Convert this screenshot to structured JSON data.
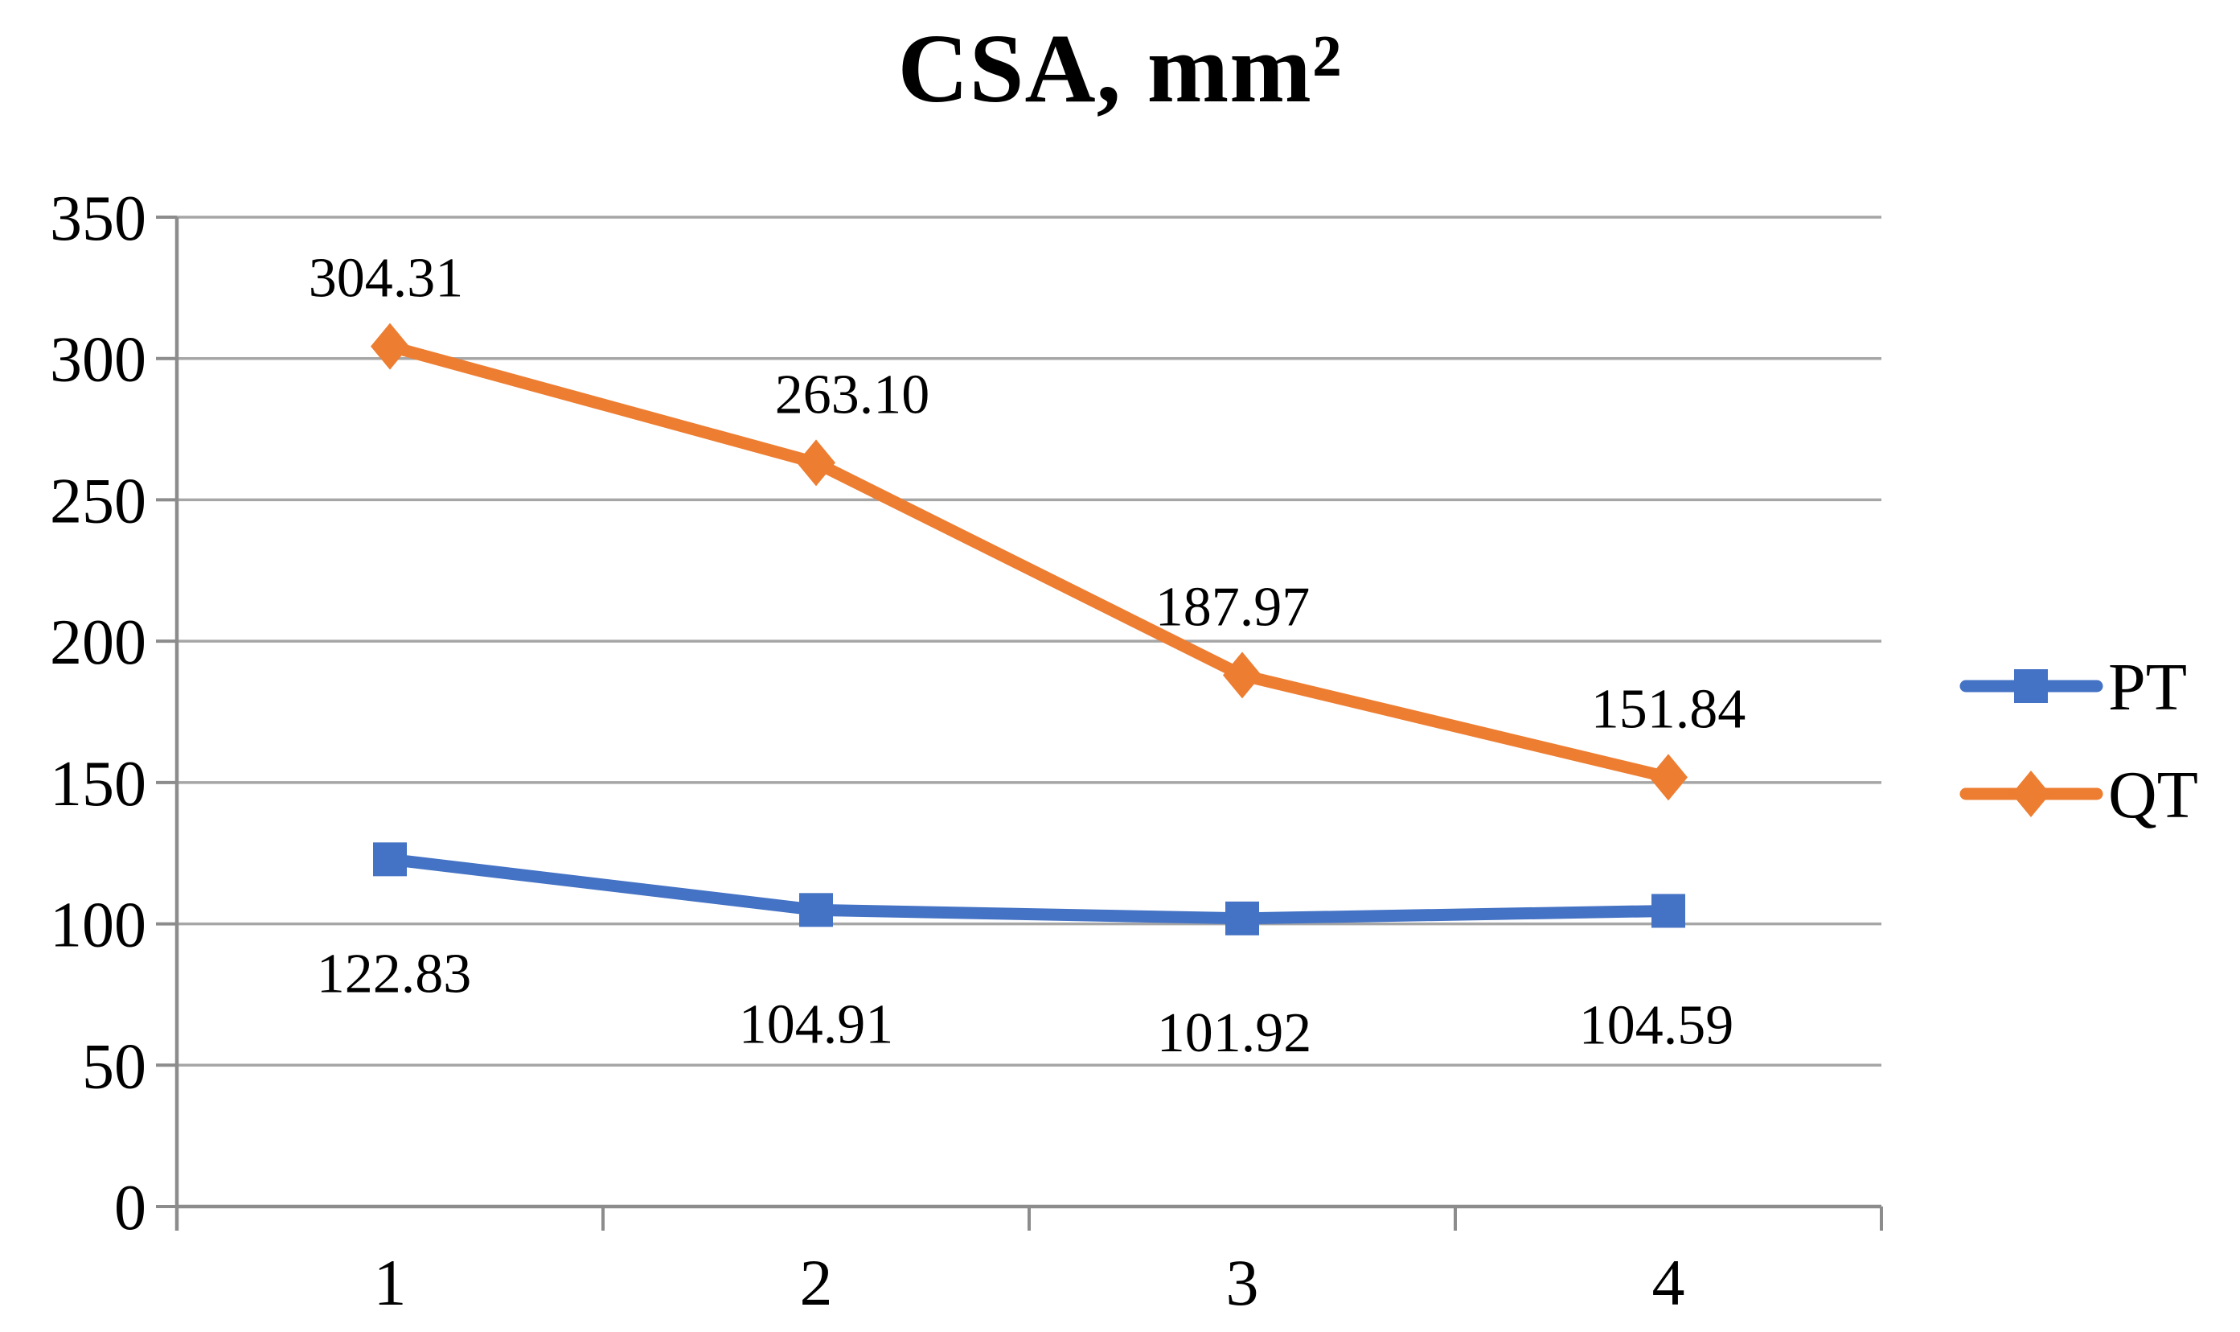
{
  "figure": {
    "background": "#ffffff"
  },
  "chart_data": {
    "type": "line",
    "title": "CSA, mm²",
    "categories": [
      "1",
      "2",
      "3",
      "4"
    ],
    "series": [
      {
        "name": "PT",
        "color": "#4472C4",
        "marker": "square",
        "values": [
          122.83,
          104.91,
          101.92,
          104.59
        ],
        "data_labels": [
          "122.83",
          "104.91",
          "101.92",
          "104.59"
        ],
        "label_side": "below"
      },
      {
        "name": "QT",
        "color": "#ED7D31",
        "marker": "diamond",
        "values": [
          304.31,
          263.1,
          187.97,
          151.84
        ],
        "data_labels": [
          "304.31",
          "263.10",
          "187.97",
          "151.84"
        ],
        "label_side": "above"
      }
    ],
    "ylim": [
      0,
      350
    ],
    "yticks": [
      "0",
      "50",
      "100",
      "150",
      "200",
      "250",
      "300",
      "350"
    ],
    "xlabel": "",
    "ylabel": "",
    "grid": true,
    "legend_position": "right",
    "legend_entries": [
      "PT",
      "QT"
    ],
    "text_color": "#000000",
    "grid_color": "#A6A6A6",
    "axis_color": "#8C8C8C"
  }
}
